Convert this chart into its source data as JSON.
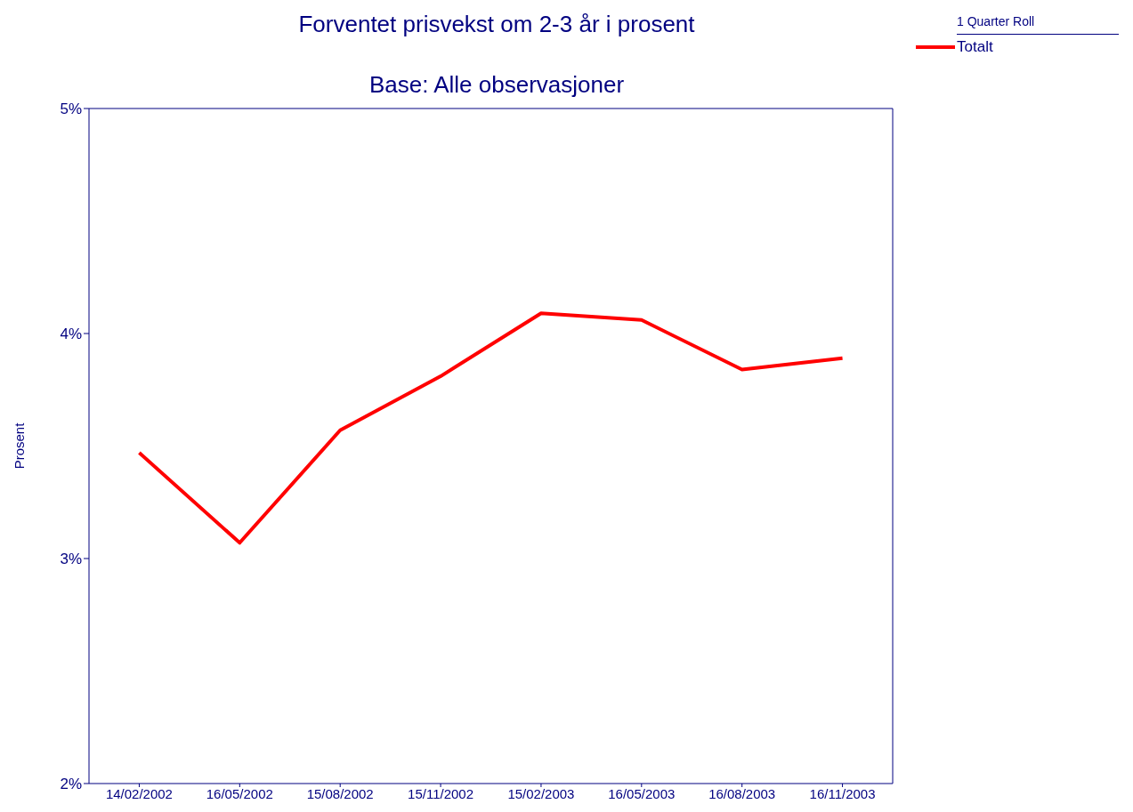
{
  "chart_data": {
    "type": "line",
    "title": "Forventet prisvekst om 2-3 år i prosent",
    "subtitle": "Base: Alle observasjoner",
    "ylabel": "Prosent",
    "legend_title": "1 Quarter Roll",
    "legend": "top right",
    "grid": false,
    "marker": "none",
    "line_style": "solid",
    "categories": [
      "14/02/2002",
      "16/05/2002",
      "15/08/2002",
      "15/11/2002",
      "15/02/2003",
      "16/05/2003",
      "16/08/2003",
      "16/11/2003"
    ],
    "ylim": [
      2,
      5
    ],
    "yticks": [
      {
        "value": 2,
        "label": "2%"
      },
      {
        "value": 3,
        "label": "3%"
      },
      {
        "value": 4,
        "label": "4%"
      },
      {
        "value": 5,
        "label": "5%"
      }
    ],
    "series": [
      {
        "name": "Totalt",
        "color": "#ff0000",
        "values": [
          3.47,
          3.07,
          3.57,
          3.81,
          4.09,
          4.06,
          3.84,
          3.89
        ]
      }
    ]
  }
}
